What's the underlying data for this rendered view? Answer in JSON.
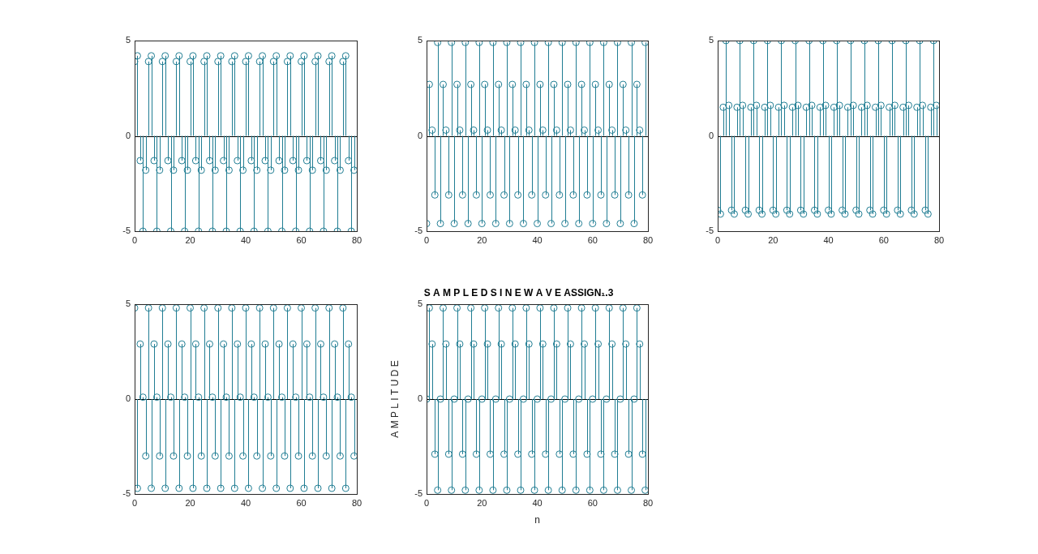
{
  "chart_data": [
    {
      "type": "stem",
      "color": "#207d93",
      "marker": "circle",
      "x": [
        0,
        1,
        2,
        3,
        4,
        5,
        6,
        7,
        8,
        9,
        10,
        11,
        12,
        13,
        14,
        15,
        16,
        17,
        18,
        19,
        20,
        21,
        22,
        23,
        24,
        25,
        26,
        27,
        28,
        29,
        30,
        31,
        32,
        33,
        34,
        35,
        36,
        37,
        38,
        39,
        40,
        41,
        42,
        43,
        44,
        45,
        46,
        47,
        48,
        49,
        50,
        51,
        52,
        53,
        54,
        55,
        56,
        57,
        58,
        59,
        60,
        61,
        62,
        63,
        64,
        65,
        66,
        67,
        68,
        69,
        70,
        71,
        72,
        73,
        74,
        75,
        76,
        77,
        78,
        79
      ],
      "values": [
        3.9,
        4.2,
        -1.3,
        -5,
        -1.8,
        3.9,
        4.2,
        -1.3,
        -5,
        -1.8,
        3.9,
        4.2,
        -1.3,
        -5,
        -1.8,
        3.9,
        4.2,
        -1.3,
        -5,
        -1.8,
        3.9,
        4.2,
        -1.3,
        -5,
        -1.8,
        3.9,
        4.2,
        -1.3,
        -5,
        -1.8,
        3.9,
        4.2,
        -1.3,
        -5,
        -1.8,
        3.9,
        4.2,
        -1.3,
        -5,
        -1.8,
        3.9,
        4.2,
        -1.3,
        -5,
        -1.8,
        3.9,
        4.2,
        -1.3,
        -5,
        -1.8,
        3.9,
        4.2,
        -1.3,
        -5,
        -1.8,
        3.9,
        4.2,
        -1.3,
        -5,
        -1.8,
        3.9,
        4.2,
        -1.3,
        -5,
        -1.8,
        3.9,
        4.2,
        -1.3,
        -5,
        -1.8,
        3.9,
        4.2,
        -1.3,
        -5,
        -1.8,
        3.9,
        4.2,
        -1.3,
        -5,
        -1.8
      ],
      "xlim": [
        0,
        80
      ],
      "xticks": [
        0,
        20,
        40,
        60,
        80
      ],
      "ylim": [
        -5,
        5
      ],
      "yticks": [
        -5,
        0,
        5
      ],
      "grid": false
    },
    {
      "type": "stem",
      "color": "#207d93",
      "marker": "circle",
      "x": [
        0,
        1,
        2,
        3,
        4,
        5,
        6,
        7,
        8,
        9,
        10,
        11,
        12,
        13,
        14,
        15,
        16,
        17,
        18,
        19,
        20,
        21,
        22,
        23,
        24,
        25,
        26,
        27,
        28,
        29,
        30,
        31,
        32,
        33,
        34,
        35,
        36,
        37,
        38,
        39,
        40,
        41,
        42,
        43,
        44,
        45,
        46,
        47,
        48,
        49,
        50,
        51,
        52,
        53,
        54,
        55,
        56,
        57,
        58,
        59,
        60,
        61,
        62,
        63,
        64,
        65,
        66,
        67,
        68,
        69,
        70,
        71,
        72,
        73,
        74,
        75,
        76,
        77,
        78,
        79
      ],
      "values": [
        -4.6,
        2.7,
        0.3,
        -3.1,
        4.9,
        -4.6,
        2.7,
        0.3,
        -3.1,
        4.9,
        -4.6,
        2.7,
        0.3,
        -3.1,
        4.9,
        -4.6,
        2.7,
        0.3,
        -3.1,
        4.9,
        -4.6,
        2.7,
        0.3,
        -3.1,
        4.9,
        -4.6,
        2.7,
        0.3,
        -3.1,
        4.9,
        -4.6,
        2.7,
        0.3,
        -3.1,
        4.9,
        -4.6,
        2.7,
        0.3,
        -3.1,
        4.9,
        -4.6,
        2.7,
        0.3,
        -3.1,
        4.9,
        -4.6,
        2.7,
        0.3,
        -3.1,
        4.9,
        -4.6,
        2.7,
        0.3,
        -3.1,
        4.9,
        -4.6,
        2.7,
        0.3,
        -3.1,
        4.9,
        -4.6,
        2.7,
        0.3,
        -3.1,
        4.9,
        -4.6,
        2.7,
        0.3,
        -3.1,
        4.9,
        -4.6,
        2.7,
        0.3,
        -3.1,
        4.9,
        -4.6,
        2.7,
        0.3,
        -3.1,
        4.9
      ],
      "xlim": [
        0,
        80
      ],
      "xticks": [
        0,
        20,
        40,
        60,
        80
      ],
      "ylim": [
        -5,
        5
      ],
      "yticks": [
        -5,
        0,
        5
      ],
      "grid": false
    },
    {
      "type": "stem",
      "color": "#207d93",
      "marker": "circle",
      "x": [
        0,
        1,
        2,
        3,
        4,
        5,
        6,
        7,
        8,
        9,
        10,
        11,
        12,
        13,
        14,
        15,
        16,
        17,
        18,
        19,
        20,
        21,
        22,
        23,
        24,
        25,
        26,
        27,
        28,
        29,
        30,
        31,
        32,
        33,
        34,
        35,
        36,
        37,
        38,
        39,
        40,
        41,
        42,
        43,
        44,
        45,
        46,
        47,
        48,
        49,
        50,
        51,
        52,
        53,
        54,
        55,
        56,
        57,
        58,
        59,
        60,
        61,
        62,
        63,
        64,
        65,
        66,
        67,
        68,
        69,
        70,
        71,
        72,
        73,
        74,
        75,
        76,
        77,
        78,
        79
      ],
      "values": [
        -3.9,
        -4.1,
        1.5,
        5,
        1.6,
        -3.9,
        -4.1,
        1.5,
        5,
        1.6,
        -3.9,
        -4.1,
        1.5,
        5,
        1.6,
        -3.9,
        -4.1,
        1.5,
        5,
        1.6,
        -3.9,
        -4.1,
        1.5,
        5,
        1.6,
        -3.9,
        -4.1,
        1.5,
        5,
        1.6,
        -3.9,
        -4.1,
        1.5,
        5,
        1.6,
        -3.9,
        -4.1,
        1.5,
        5,
        1.6,
        -3.9,
        -4.1,
        1.5,
        5,
        1.6,
        -3.9,
        -4.1,
        1.5,
        5,
        1.6,
        -3.9,
        -4.1,
        1.5,
        5,
        1.6,
        -3.9,
        -4.1,
        1.5,
        5,
        1.6,
        -3.9,
        -4.1,
        1.5,
        5,
        1.6,
        -3.9,
        -4.1,
        1.5,
        5,
        1.6,
        -3.9,
        -4.1,
        1.5,
        5,
        1.6,
        -3.9,
        -4.1,
        1.5,
        5,
        1.6
      ],
      "xlim": [
        0,
        80
      ],
      "xticks": [
        0,
        20,
        40,
        60,
        80
      ],
      "ylim": [
        -5,
        5
      ],
      "yticks": [
        -5,
        0,
        5
      ],
      "grid": false
    },
    {
      "type": "stem",
      "color": "#207d93",
      "marker": "circle",
      "x": [
        0,
        1,
        2,
        3,
        4,
        5,
        6,
        7,
        8,
        9,
        10,
        11,
        12,
        13,
        14,
        15,
        16,
        17,
        18,
        19,
        20,
        21,
        22,
        23,
        24,
        25,
        26,
        27,
        28,
        29,
        30,
        31,
        32,
        33,
        34,
        35,
        36,
        37,
        38,
        39,
        40,
        41,
        42,
        43,
        44,
        45,
        46,
        47,
        48,
        49,
        50,
        51,
        52,
        53,
        54,
        55,
        56,
        57,
        58,
        59,
        60,
        61,
        62,
        63,
        64,
        65,
        66,
        67,
        68,
        69,
        70,
        71,
        72,
        73,
        74,
        75,
        76,
        77,
        78,
        79
      ],
      "values": [
        4.8,
        -4.7,
        2.9,
        0.1,
        -3,
        4.8,
        -4.7,
        2.9,
        0.1,
        -3,
        4.8,
        -4.7,
        2.9,
        0.1,
        -3,
        4.8,
        -4.7,
        2.9,
        0.1,
        -3,
        4.8,
        -4.7,
        2.9,
        0.1,
        -3,
        4.8,
        -4.7,
        2.9,
        0.1,
        -3,
        4.8,
        -4.7,
        2.9,
        0.1,
        -3,
        4.8,
        -4.7,
        2.9,
        0.1,
        -3,
        4.8,
        -4.7,
        2.9,
        0.1,
        -3,
        4.8,
        -4.7,
        2.9,
        0.1,
        -3,
        4.8,
        -4.7,
        2.9,
        0.1,
        -3,
        4.8,
        -4.7,
        2.9,
        0.1,
        -3,
        4.8,
        -4.7,
        2.9,
        0.1,
        -3,
        4.8,
        -4.7,
        2.9,
        0.1,
        -3,
        4.8,
        -4.7,
        2.9,
        0.1,
        -3,
        4.8,
        -4.7,
        2.9,
        0.1,
        -3
      ],
      "xlim": [
        0,
        80
      ],
      "xticks": [
        0,
        20,
        40,
        60,
        80
      ],
      "ylim": [
        -5,
        5
      ],
      "yticks": [
        -5,
        0,
        5
      ],
      "grid": false
    },
    {
      "type": "stem",
      "title": "S A M P L E D S I N E W A V E ASSIGN₁.3",
      "xlabel": "n",
      "ylabel": "A M P L I T U D E",
      "color": "#207d93",
      "marker": "circle",
      "x": [
        0,
        1,
        2,
        3,
        4,
        5,
        6,
        7,
        8,
        9,
        10,
        11,
        12,
        13,
        14,
        15,
        16,
        17,
        18,
        19,
        20,
        21,
        22,
        23,
        24,
        25,
        26,
        27,
        28,
        29,
        30,
        31,
        32,
        33,
        34,
        35,
        36,
        37,
        38,
        39,
        40,
        41,
        42,
        43,
        44,
        45,
        46,
        47,
        48,
        49,
        50,
        51,
        52,
        53,
        54,
        55,
        56,
        57,
        58,
        59,
        60,
        61,
        62,
        63,
        64,
        65,
        66,
        67,
        68,
        69,
        70,
        71,
        72,
        73,
        74,
        75,
        76,
        77,
        78,
        79
      ],
      "values": [
        0,
        4.8,
        2.9,
        -2.9,
        -4.8,
        0,
        4.8,
        2.9,
        -2.9,
        -4.8,
        0,
        4.8,
        2.9,
        -2.9,
        -4.8,
        0,
        4.8,
        2.9,
        -2.9,
        -4.8,
        0,
        4.8,
        2.9,
        -2.9,
        -4.8,
        0,
        4.8,
        2.9,
        -2.9,
        -4.8,
        0,
        4.8,
        2.9,
        -2.9,
        -4.8,
        0,
        4.8,
        2.9,
        -2.9,
        -4.8,
        0,
        4.8,
        2.9,
        -2.9,
        -4.8,
        0,
        4.8,
        2.9,
        -2.9,
        -4.8,
        0,
        4.8,
        2.9,
        -2.9,
        -4.8,
        0,
        4.8,
        2.9,
        -2.9,
        -4.8,
        0,
        4.8,
        2.9,
        -2.9,
        -4.8,
        0,
        4.8,
        2.9,
        -2.9,
        -4.8,
        0,
        4.8,
        2.9,
        -2.9,
        -4.8,
        0,
        4.8,
        2.9,
        -2.9,
        -4.8
      ],
      "xlim": [
        0,
        80
      ],
      "xticks": [
        0,
        20,
        40,
        60,
        80
      ],
      "ylim": [
        -5,
        5
      ],
      "yticks": [
        -5,
        0,
        5
      ],
      "grid": false
    }
  ]
}
